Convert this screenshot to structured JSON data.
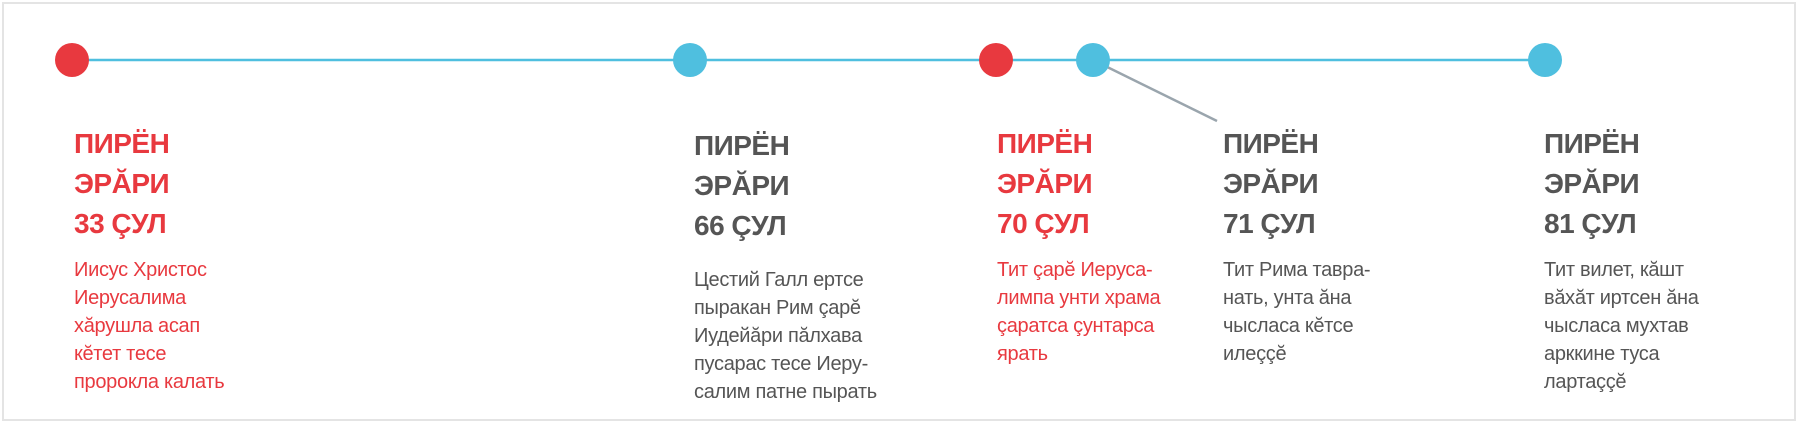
{
  "colors": {
    "red": "#e8393f",
    "blue": "#4fbfdf",
    "gray": "#555555",
    "line": "#4fbfdf",
    "connector": "#9aa5ad"
  },
  "events": [
    {
      "line1": "ПИРЁН",
      "line2": "ЭРӐРИ",
      "year": "33 ÇУЛ",
      "text": "Иисус Христос\nИерусалима\nхӑрушла асап\nкӗтет тесе\nпророкла калать",
      "color": "red"
    },
    {
      "line1": "ПИРЁН",
      "line2": "ЭРӐРИ",
      "year": "66 ÇУЛ",
      "text": "Цестий Галл ертсе\nпыракан Рим çарӗ\nИудейӑри пӑлхава\nпусарас тесе Иеру-\nсалим патне пырать",
      "color": "blue"
    },
    {
      "line1": "ПИРЁН",
      "line2": "ЭРӐРИ",
      "year": "70 ÇУЛ",
      "text": "Тит çарӗ Иеруса-\nлимпа унти храма\nçаратса çунтарса\nярать",
      "color": "red"
    },
    {
      "line1": "ПИРЁН",
      "line2": "ЭРӐРИ",
      "year": "71 ÇУЛ",
      "text": "Тит Рима тавра-\nнать, унта ӑна\nчысласа кӗтсе\nилеççӗ",
      "color": "blue"
    },
    {
      "line1": "ПИРЁН",
      "line2": "ЭРӐРИ",
      "year": "81 ÇУЛ",
      "text": "Тит вилет, кӑшт\nвӑхӑт иртсен ӑна\nчысласа мухтав\nарккине туса\nлартаççӗ",
      "color": "blue"
    }
  ]
}
